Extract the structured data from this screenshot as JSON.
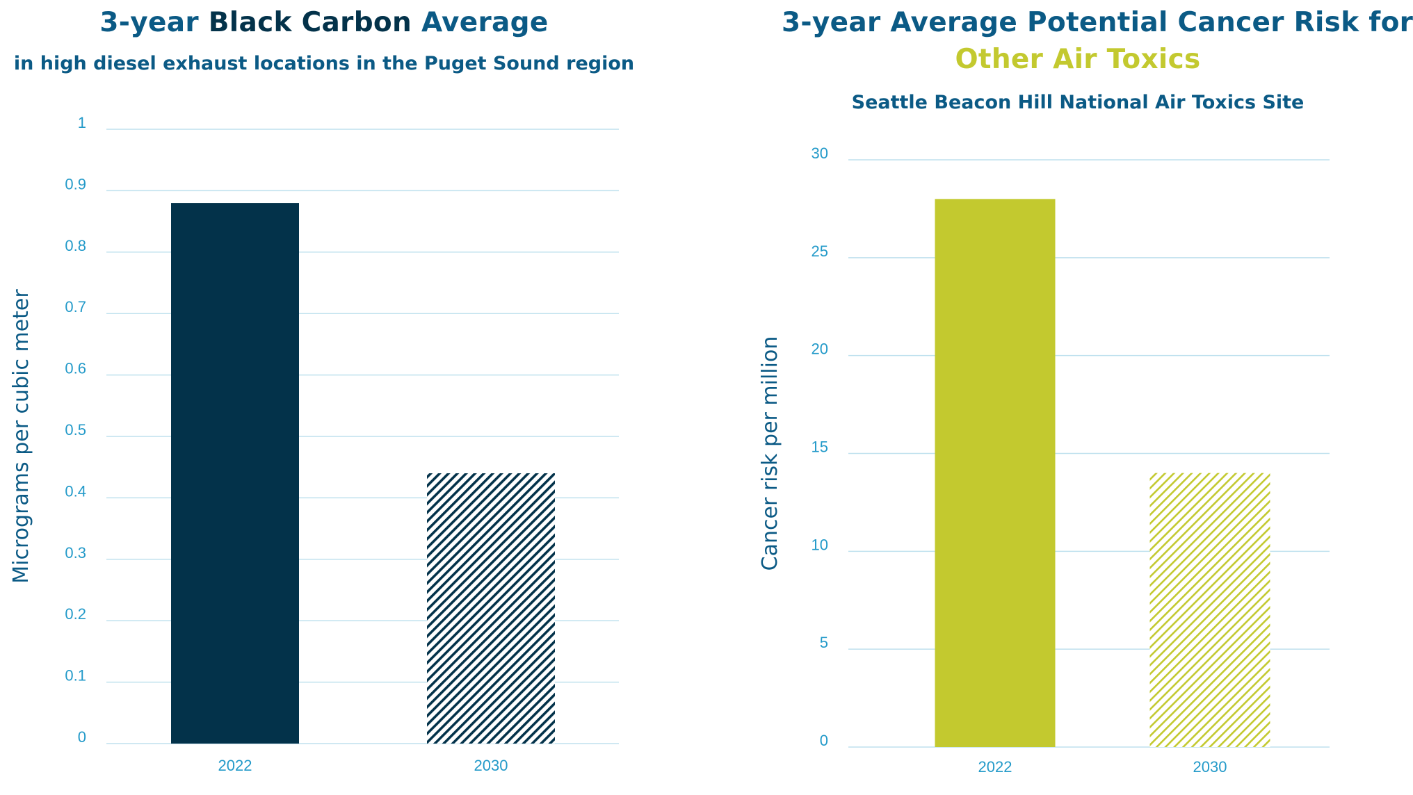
{
  "colors": {
    "title_blue": "#0b5a85",
    "title_dark": "#03324a",
    "lime": "#c3c92f",
    "tick_blue": "#239ac9",
    "grid": "#bfe1ee"
  },
  "chart_data": [
    {
      "type": "bar",
      "title_parts": [
        "3-year ",
        "Black Carbon",
        " Average"
      ],
      "subtitle": "in high diesel exhaust locations in the Puget Sound region",
      "categories": [
        "2022",
        "2030"
      ],
      "values": [
        0.88,
        0.44
      ],
      "bar_styles": [
        "solid",
        "hatched"
      ],
      "bar_color": "#03324a",
      "xlabel": "",
      "ylabel": "Micrograms per cubic meter",
      "ylim": [
        0,
        1
      ],
      "yticks": [
        0,
        0.1,
        0.2,
        0.3,
        0.4,
        0.5,
        0.6,
        0.7,
        0.8,
        0.9,
        1
      ],
      "ytick_labels": [
        "0",
        "0.1",
        "0.2",
        "0.3",
        "0.4",
        "0.5",
        "0.6",
        "0.7",
        "0.8",
        "0.9",
        "1"
      ],
      "grid": true
    },
    {
      "type": "bar",
      "title_line1": "3-year Average Potential Cancer Risk for",
      "title_line2": "Other Air Toxics",
      "subtitle": "Seattle Beacon Hill National Air Toxics Site",
      "categories": [
        "2022",
        "2030"
      ],
      "values": [
        28,
        14
      ],
      "bar_styles": [
        "solid",
        "hatched"
      ],
      "bar_color": "#c3c92f",
      "xlabel": "",
      "ylabel": "Cancer risk per million",
      "ylim": [
        0,
        30
      ],
      "yticks": [
        0,
        5,
        10,
        15,
        20,
        25,
        30
      ],
      "ytick_labels": [
        "0",
        "5",
        "10",
        "15",
        "20",
        "25",
        "30"
      ],
      "grid": true
    }
  ]
}
